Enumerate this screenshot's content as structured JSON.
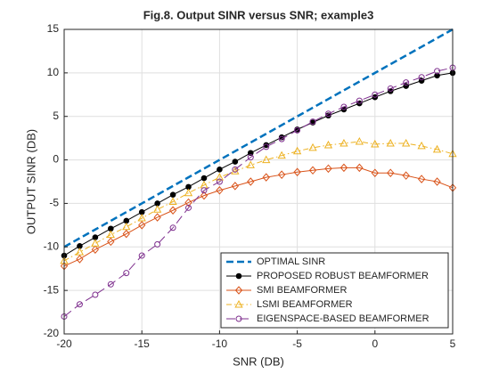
{
  "chart_data": {
    "type": "line",
    "title": "Fig.8. Output SINR versus SNR; example3",
    "x_label": "SNR (DB)",
    "y_label": "OUTPUT SINR (DB)",
    "x": [
      -20,
      -19,
      -18,
      -17,
      -16,
      -15,
      -14,
      -13,
      -12,
      -11,
      -10,
      -9,
      -8,
      -7,
      -6,
      -5,
      -4,
      -3,
      -2,
      -1,
      0,
      1,
      2,
      3,
      4,
      5
    ],
    "xlim": [
      -20,
      5
    ],
    "xticks": [
      -20,
      -15,
      -10,
      -5,
      0,
      5
    ],
    "ylim": [
      -20,
      15
    ],
    "yticks": [
      -20,
      -15,
      -10,
      -5,
      0,
      5,
      10,
      15
    ],
    "grid": true,
    "legend": "lower right",
    "series": [
      {
        "name": "OPTIMAL SINR",
        "color": "#0072bd",
        "marker": "none",
        "dash": "dashed",
        "values": [
          -10,
          -9,
          -8,
          -7,
          -6,
          -5,
          -4,
          -3,
          -2,
          -1,
          0,
          1,
          2,
          3,
          4,
          5,
          6,
          7,
          8,
          9,
          10,
          11,
          12,
          13,
          14,
          15
        ]
      },
      {
        "name": "PROPOSED ROBUST BEAMFORMER",
        "color": "#000000",
        "marker": "filled-circle",
        "dash": "solid",
        "values": [
          -11,
          -9.9,
          -8.9,
          -7.9,
          -7,
          -6,
          -5,
          -4,
          -3.1,
          -2.1,
          -1.1,
          -0.2,
          0.8,
          1.7,
          2.6,
          3.5,
          4.3,
          5.1,
          5.8,
          6.5,
          7.2,
          7.9,
          8.5,
          9.1,
          9.7,
          10
        ]
      },
      {
        "name": "SMI BEAMFORMER",
        "color": "#d95319",
        "marker": "diamond",
        "dash": "solid",
        "values": [
          -12.2,
          -11.4,
          -10.3,
          -9.4,
          -8.5,
          -7.5,
          -6.6,
          -5.8,
          -4.9,
          -4.1,
          -3.5,
          -3,
          -2.5,
          -2,
          -1.7,
          -1.4,
          -1.2,
          -1,
          -0.9,
          -0.9,
          -1.5,
          -1.5,
          -1.8,
          -2.2,
          -2.5,
          -3.2
        ]
      },
      {
        "name": "LSMI BEAMFORMER",
        "color": "#edb120",
        "marker": "triangle",
        "dash": "dashdot",
        "values": [
          -11.6,
          -10.6,
          -9.6,
          -8.6,
          -7.7,
          -6.7,
          -5.7,
          -4.8,
          -3.8,
          -2.9,
          -2,
          -1.3,
          -0.6,
          0,
          0.5,
          1,
          1.4,
          1.7,
          1.9,
          2.1,
          1.8,
          1.9,
          1.9,
          1.6,
          1.2,
          0.7
        ]
      },
      {
        "name": "EIGENSPACE-BASED BEAMFORMER",
        "color": "#7e2f8e",
        "marker": "circle",
        "dash": "longdash",
        "values": [
          -18,
          -16.6,
          -15.5,
          -14.3,
          -13,
          -11,
          -9.7,
          -7.8,
          -5.5,
          -3.5,
          -2.5,
          -1.1,
          0.3,
          1.5,
          2.4,
          3.4,
          4.4,
          5.3,
          6.1,
          6.8,
          7.5,
          8.2,
          8.9,
          9.5,
          10.2,
          10.6
        ]
      }
    ]
  }
}
